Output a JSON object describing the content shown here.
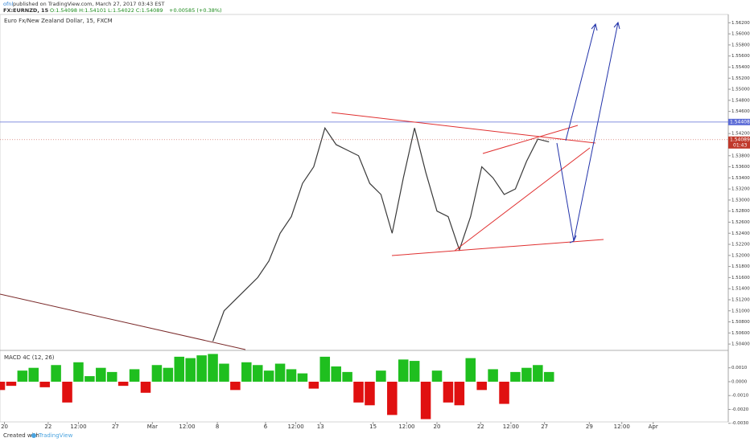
{
  "header": {
    "author": "ofnl",
    "published": "published on TradingView.com, March 27, 2017 03:43 EST",
    "symbol": "FX:EURNZD, 15",
    "ohlc": "O:1.54098 H:1.54101 L:1.54022 C:1.54089",
    "change": "+0.00585 (+0.38%)"
  },
  "footer": {
    "created": "Created with",
    "brand": "TradingView"
  },
  "chart_data": [
    {
      "type": "line",
      "title": "Euro Fx/New Zealand Dollar, 15, FXCM",
      "color": "#3a3a3a",
      "values": [
        null,
        null,
        null,
        null,
        null,
        null,
        null,
        null,
        null,
        null,
        null,
        null,
        null,
        null,
        null,
        null,
        null,
        null,
        null,
        1.5045,
        1.51,
        1.512,
        1.514,
        1.516,
        1.519,
        1.524,
        1.527,
        1.533,
        1.536,
        1.543,
        1.54,
        1.539,
        1.538,
        1.533,
        1.531,
        1.524,
        1.534,
        1.543,
        1.535,
        1.528,
        1.527,
        1.521,
        1.527,
        1.536,
        1.534,
        1.531,
        1.532,
        1.537,
        1.541,
        1.5405
      ],
      "xlim": [
        0,
        65
      ],
      "xticks": [
        {
          "value": 0.4,
          "label": "20"
        },
        {
          "value": 4.3,
          "label": "22"
        },
        {
          "value": 7,
          "label": "12:00"
        },
        {
          "value": 10.3,
          "label": "27"
        },
        {
          "value": 13.6,
          "label": "Mar"
        },
        {
          "value": 16.7,
          "label": "12:00"
        },
        {
          "value": 19.4,
          "label": "8"
        },
        {
          "value": 23.7,
          "label": "6"
        },
        {
          "value": 26.4,
          "label": "12:00"
        },
        {
          "value": 28.6,
          "label": "13"
        },
        {
          "value": 33.3,
          "label": "15"
        },
        {
          "value": 36.3,
          "label": "12:00"
        },
        {
          "value": 39,
          "label": "20"
        },
        {
          "value": 42.9,
          "label": "22"
        },
        {
          "value": 45.6,
          "label": "12:00"
        },
        {
          "value": 48.6,
          "label": "27"
        },
        {
          "value": 52.6,
          "label": "29"
        },
        {
          "value": 55.5,
          "label": "12:00"
        },
        {
          "value": 58.3,
          "label": "Apr"
        }
      ],
      "ylim": [
        1.503,
        1.5635
      ],
      "yticks": [
        {
          "value": 1.504,
          "label": "1.50400"
        },
        {
          "value": 1.506,
          "label": "1.50600"
        },
        {
          "value": 1.508,
          "label": "1.50800"
        },
        {
          "value": 1.51,
          "label": "1.51000"
        },
        {
          "value": 1.512,
          "label": "1.51200"
        },
        {
          "value": 1.514,
          "label": "1.51400"
        },
        {
          "value": 1.516,
          "label": "1.51600"
        },
        {
          "value": 1.518,
          "label": "1.51800"
        },
        {
          "value": 1.52,
          "label": "1.52000"
        },
        {
          "value": 1.522,
          "label": "1.52200"
        },
        {
          "value": 1.524,
          "label": "1.52400"
        },
        {
          "value": 1.526,
          "label": "1.52600"
        },
        {
          "value": 1.528,
          "label": "1.52800"
        },
        {
          "value": 1.53,
          "label": "1.53000"
        },
        {
          "value": 1.532,
          "label": "1.53200"
        },
        {
          "value": 1.534,
          "label": "1.53400"
        },
        {
          "value": 1.536,
          "label": "1.53600"
        },
        {
          "value": 1.538,
          "label": "1.53800"
        },
        {
          "value": 1.54,
          "label": "1.54000"
        },
        {
          "value": 1.542,
          "label": "1.54200"
        },
        {
          "value": 1.544,
          "label": "1.54400"
        },
        {
          "value": 1.546,
          "label": "1.54600"
        },
        {
          "value": 1.548,
          "label": "1.54800"
        },
        {
          "value": 1.55,
          "label": "1.55000"
        },
        {
          "value": 1.552,
          "label": "1.55200"
        },
        {
          "value": 1.554,
          "label": "1.55400"
        },
        {
          "value": 1.556,
          "label": "1.55600"
        },
        {
          "value": 1.558,
          "label": "1.55800"
        },
        {
          "value": 1.56,
          "label": "1.56000"
        },
        {
          "value": 1.562,
          "label": "1.56200"
        }
      ],
      "last_price": 1.54089,
      "countdown": "01:43",
      "last_color": "#c0392b",
      "level": 1.54408,
      "level_color": "#5b6bd6"
    },
    {
      "type": "bar",
      "title": "MACD 4C (12, 26)",
      "colors": {
        "positive": "#1fbf1f",
        "negative": "#e01010"
      },
      "values": [
        -0.0006,
        -0.0003,
        0.0008,
        0.001,
        -0.0004,
        0.0012,
        -0.0015,
        0.0014,
        0.0004,
        0.001,
        0.0007,
        -0.0003,
        0.0009,
        -0.0008,
        0.0012,
        0.001,
        0.0018,
        0.0017,
        0.0019,
        0.002,
        0.0013,
        -0.0006,
        0.0014,
        0.0012,
        0.0008,
        0.0013,
        0.0009,
        0.0006,
        -0.0005,
        0.0018,
        0.0011,
        0.0007,
        -0.0015,
        -0.0017,
        0.0008,
        -0.0024,
        0.0016,
        0.0015,
        -0.0027,
        0.0008,
        -0.0015,
        -0.0017,
        0.0017,
        -0.0006,
        0.0009,
        -0.0016,
        0.0007,
        0.001,
        0.0012,
        0.0007
      ],
      "ylim": [
        -0.0029,
        0.0022
      ],
      "yticks": [
        {
          "value": 0.001,
          "label": "0.0010"
        },
        {
          "value": 0,
          "label": "0.0000"
        },
        {
          "value": -0.001,
          "label": "-0.0010"
        },
        {
          "value": -0.002,
          "label": "-0.0020"
        },
        {
          "value": -0.003,
          "label": "-0.0030"
        }
      ]
    }
  ]
}
